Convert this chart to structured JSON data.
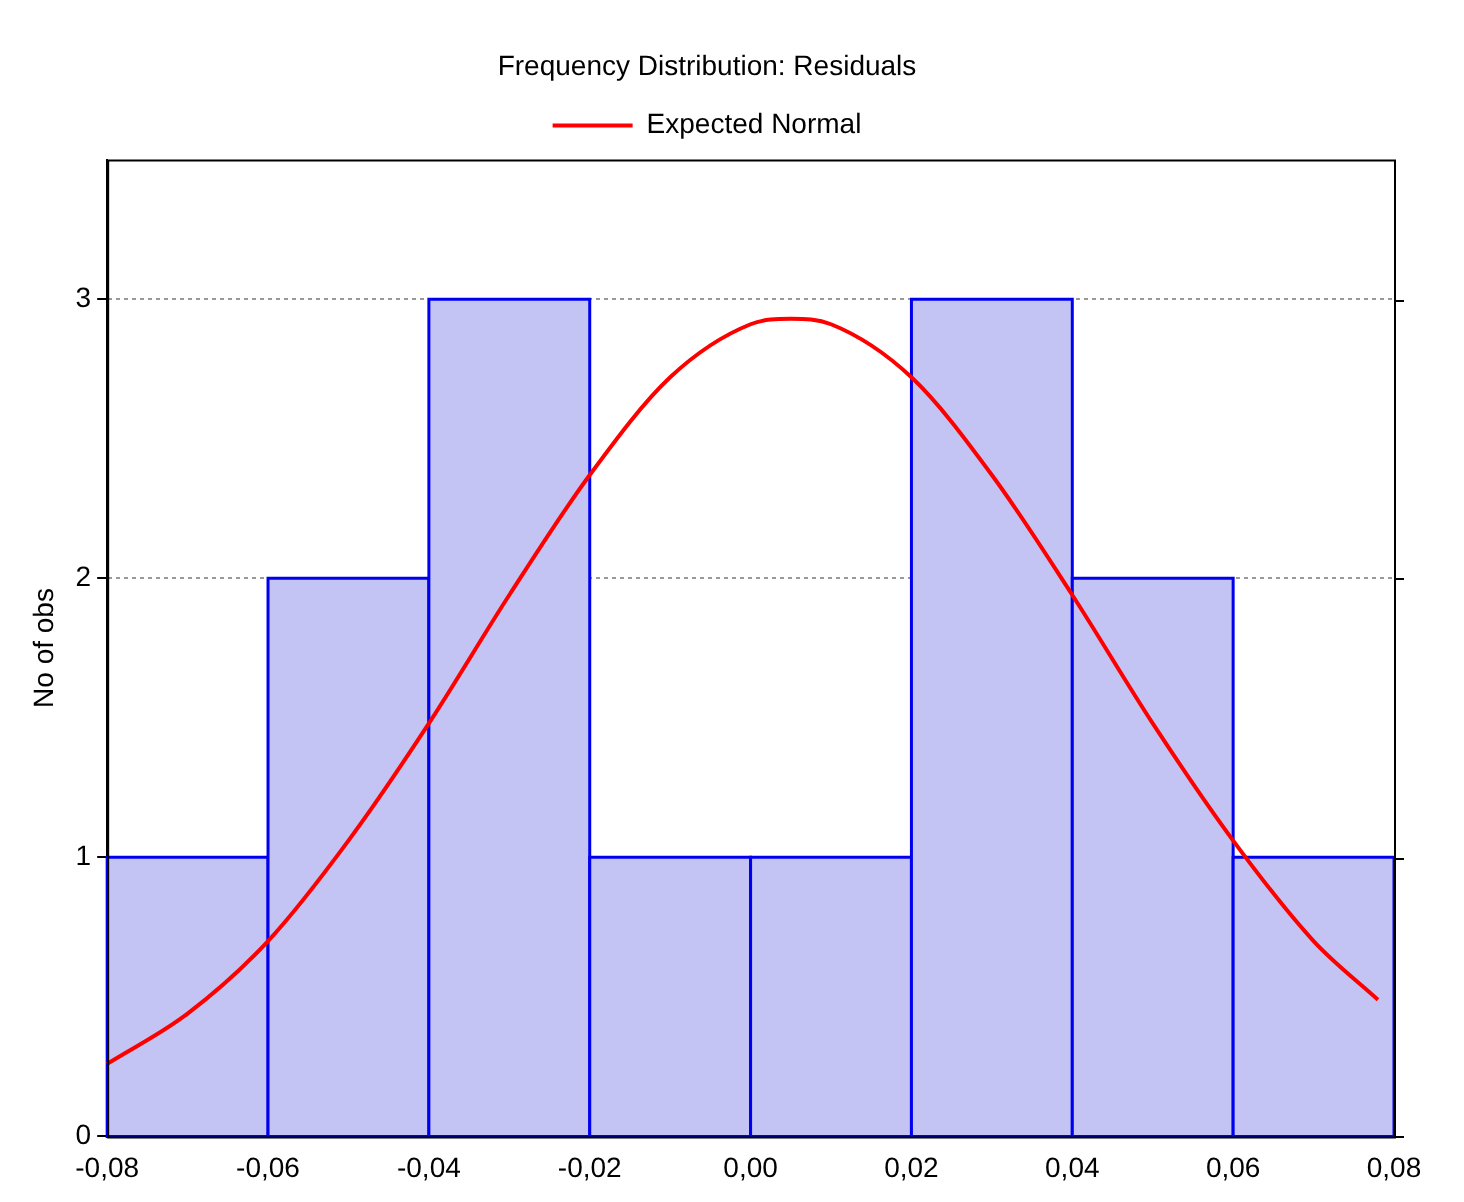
{
  "chart_data": {
    "type": "histogram",
    "title": "Frequency Distribution: Residuals",
    "ylabel": "No of obs",
    "bins": [
      -0.08,
      -0.06,
      -0.04,
      -0.02,
      0,
      0.02,
      0.04,
      0.06,
      0.08
    ],
    "values": [
      1,
      2,
      3,
      1,
      1,
      3,
      2,
      1
    ],
    "color": "#c4c4f4",
    "xlim": [
      -0.08,
      0.08
    ],
    "xticks": [
      {
        "value": -0.08,
        "label": "-0,08"
      },
      {
        "value": -0.06,
        "label": "-0,06"
      },
      {
        "value": -0.04,
        "label": "-0,04"
      },
      {
        "value": -0.02,
        "label": "-0,02"
      },
      {
        "value": 0,
        "label": "0,00"
      },
      {
        "value": 0.02,
        "label": "0,02"
      },
      {
        "value": 0.04,
        "label": "0,04"
      },
      {
        "value": 0.06,
        "label": "0,06"
      },
      {
        "value": 0.08,
        "label": "0,08"
      }
    ],
    "ylim": [
      0,
      3.5
    ],
    "yticks": [
      0,
      1,
      2,
      3
    ],
    "grid": "y",
    "legend": "top",
    "series": [
      {
        "type": "line",
        "name": "Expected Normal",
        "color": "#ff0000",
        "x": [
          -0.08,
          -0.07,
          -0.06,
          -0.05,
          -0.04,
          -0.03,
          -0.02,
          -0.01,
          0,
          0.005,
          0.01,
          0.02,
          0.03,
          0.04,
          0.05,
          0.06,
          0.07,
          0.078
        ],
        "values": [
          0.26,
          0.44,
          0.7,
          1.06,
          1.48,
          1.94,
          2.37,
          2.72,
          2.91,
          2.93,
          2.91,
          2.72,
          2.37,
          1.94,
          1.48,
          1.06,
          0.7,
          0.49
        ]
      }
    ]
  }
}
